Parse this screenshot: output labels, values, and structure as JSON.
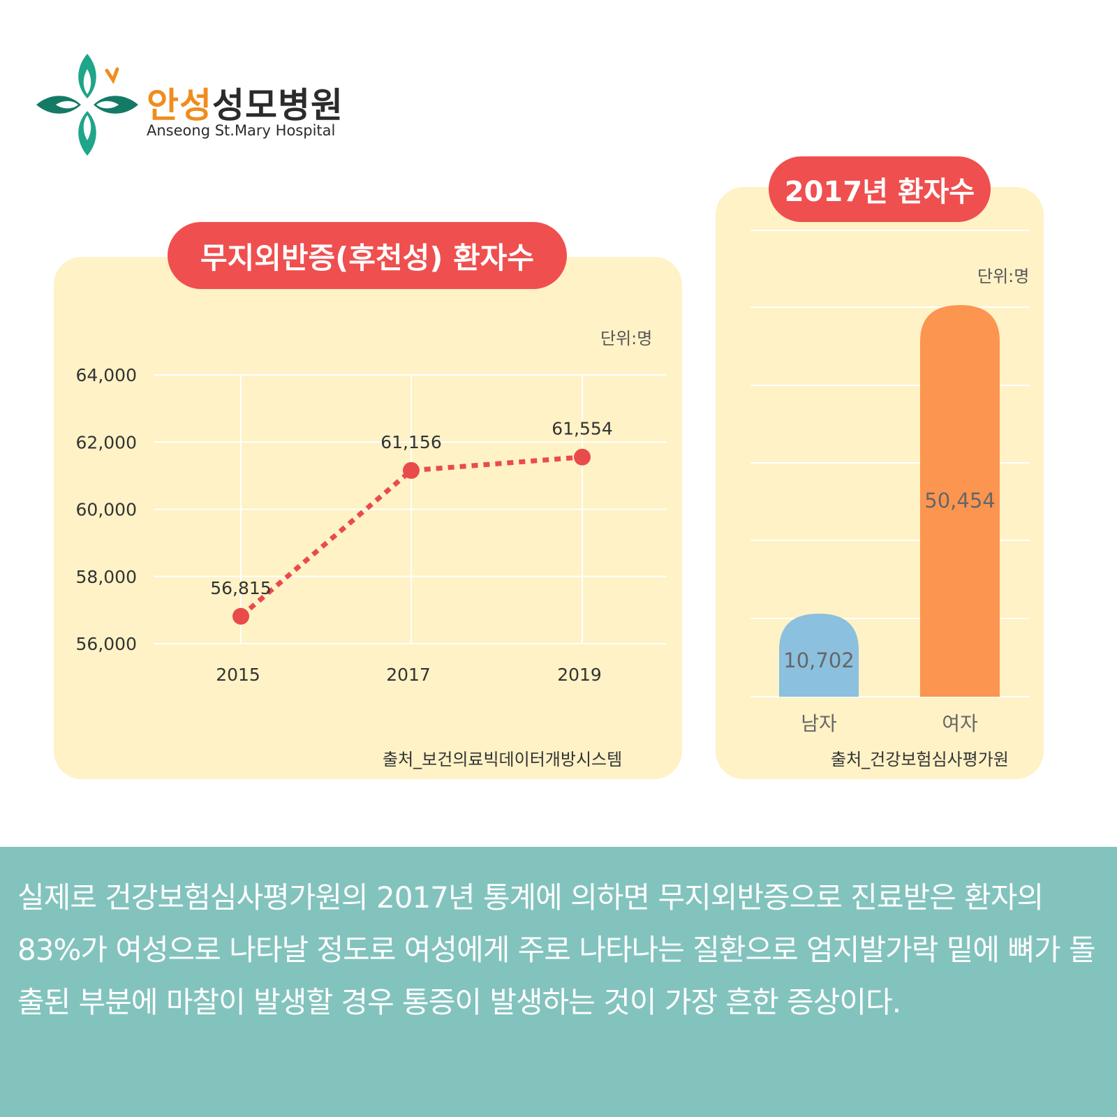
{
  "logo": {
    "name_part1": "안성",
    "name_part2": "성모병원",
    "name_en": "Anseong St.Mary Hospital",
    "colors": {
      "green": "#1a8a70",
      "teal": "#1ea58a",
      "orange": "#f08c1e"
    }
  },
  "left_chart": {
    "title": "무지외반증(후천성) 환자수",
    "unit": "단위:명",
    "source": "출처_보건의료빅데이터개방시스템"
  },
  "right_chart": {
    "title": "2017년 환자수",
    "unit": "단위:명",
    "source": "출처_건강보험심사평가원"
  },
  "chart_data": [
    {
      "type": "line",
      "title": "무지외반증(후천성) 환자수",
      "unit": "단위:명",
      "x": [
        "2015",
        "2017",
        "2019"
      ],
      "values": [
        56815,
        61156,
        61554
      ],
      "value_labels": [
        "56,815",
        "61,156",
        "61,554"
      ],
      "ylim": [
        56000,
        64000
      ],
      "yticks": [
        64000,
        62000,
        60000,
        58000,
        56000
      ],
      "ytick_labels": [
        "64,000",
        "62,000",
        "60,000",
        "58,000",
        "56,000"
      ],
      "grid": true,
      "line_style": "dotted",
      "color": "#e94b4b",
      "source": "출처_보건의료빅데이터개방시스템"
    },
    {
      "type": "bar",
      "title": "2017년 환자수",
      "unit": "단위:명",
      "categories": [
        "남자",
        "여자"
      ],
      "values": [
        10702,
        50454
      ],
      "value_labels": [
        "10,702",
        "50,454"
      ],
      "ylim": [
        0,
        50454
      ],
      "colors": [
        "#8bc0de",
        "#fb9550"
      ],
      "grid": true,
      "source": "출처_건강보험심사평가원"
    }
  ],
  "description": {
    "text": "실제로 건강보험심사평가원의 2017년 통계에 의하면 무지외반증으로 진료받은 환자의 83%가 여성으로 나타날 정도로 여성에게 주로 나타나는 질환으로 엄지발가락 밑에 뼈가 돌출된 부분에 마찰이 발생할 경우 통증이 발생하는 것이 가장 흔한 증상이다."
  }
}
